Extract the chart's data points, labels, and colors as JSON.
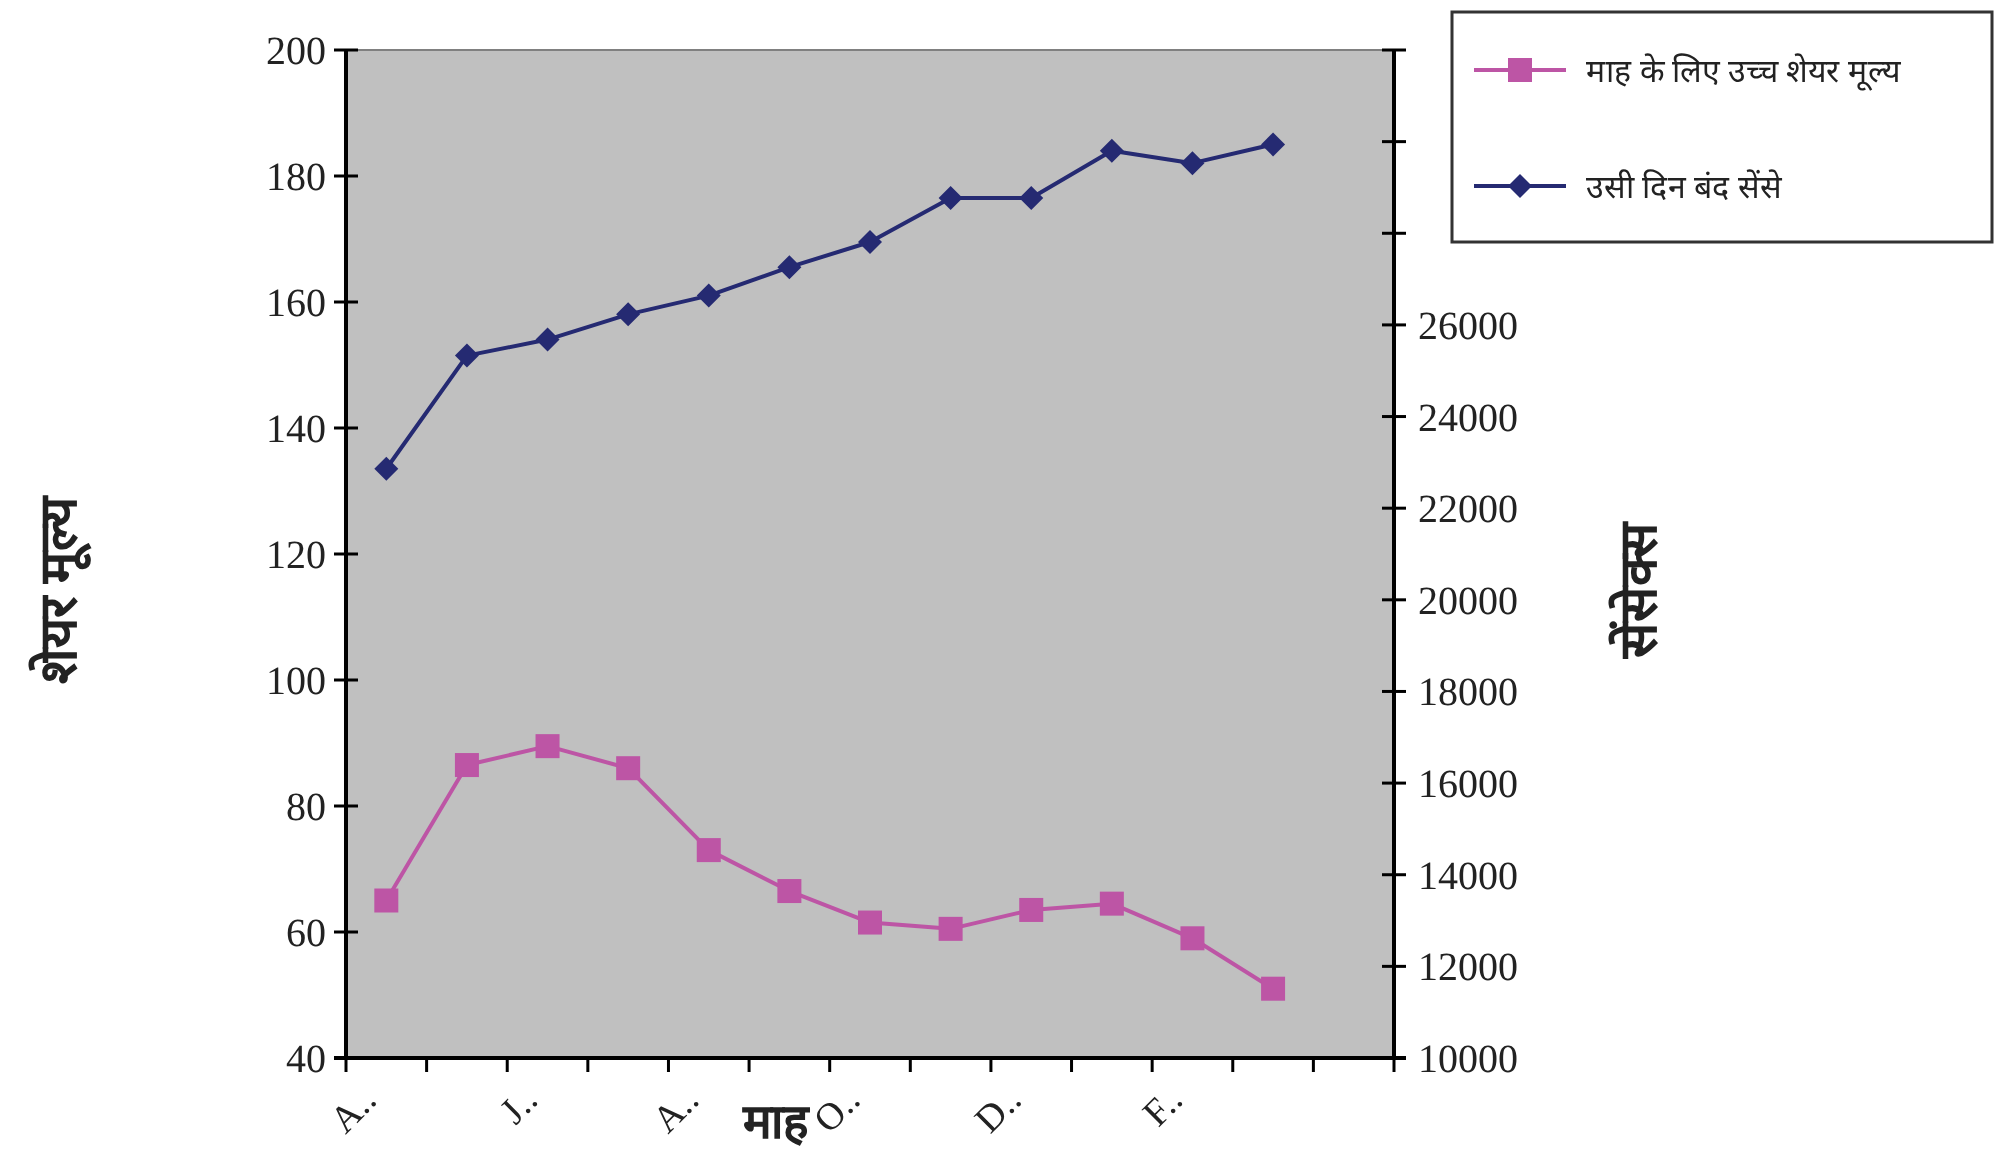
{
  "chart_data": {
    "type": "line",
    "categories": [
      "A..",
      null,
      "J..",
      null,
      "A..",
      null,
      "O..",
      null,
      "D..",
      null,
      "F..",
      null,
      null
    ],
    "series": [
      {
        "name": "माह के लिए उच्च शेयर मूल्य",
        "color": "#bd55a5",
        "marker": "square",
        "values": [
          65,
          86.5,
          89.5,
          86,
          73,
          66.5,
          61.5,
          60.5,
          63.5,
          64.5,
          59,
          51,
          null
        ]
      },
      {
        "name": "उसी दिन बंद सेंसे",
        "color": "#252a72",
        "marker": "diamond",
        "axis": "y2",
        "values": [
          22860,
          25330,
          25680,
          26230,
          26640,
          27260,
          27810,
          28770,
          28770,
          29800,
          29530,
          29940,
          null
        ]
      }
    ],
    "xlabel": "माह",
    "ylabel": "शेयर मूल्य",
    "y2label": "सेंसेक्स",
    "ylim": [
      40,
      200
    ],
    "yticks": [
      40,
      60,
      80,
      100,
      120,
      140,
      160,
      180,
      200
    ],
    "y2lim": [
      10000,
      32000
    ],
    "y2ticks": [
      10000,
      12000,
      14000,
      16000,
      18000,
      20000,
      22000,
      24000,
      26000,
      {
        "value": 28000,
        "label": null
      },
      {
        "value": 30000,
        "label": null
      },
      {
        "value": 32000,
        "label": null
      }
    ],
    "grid": false,
    "legend": "top right"
  }
}
